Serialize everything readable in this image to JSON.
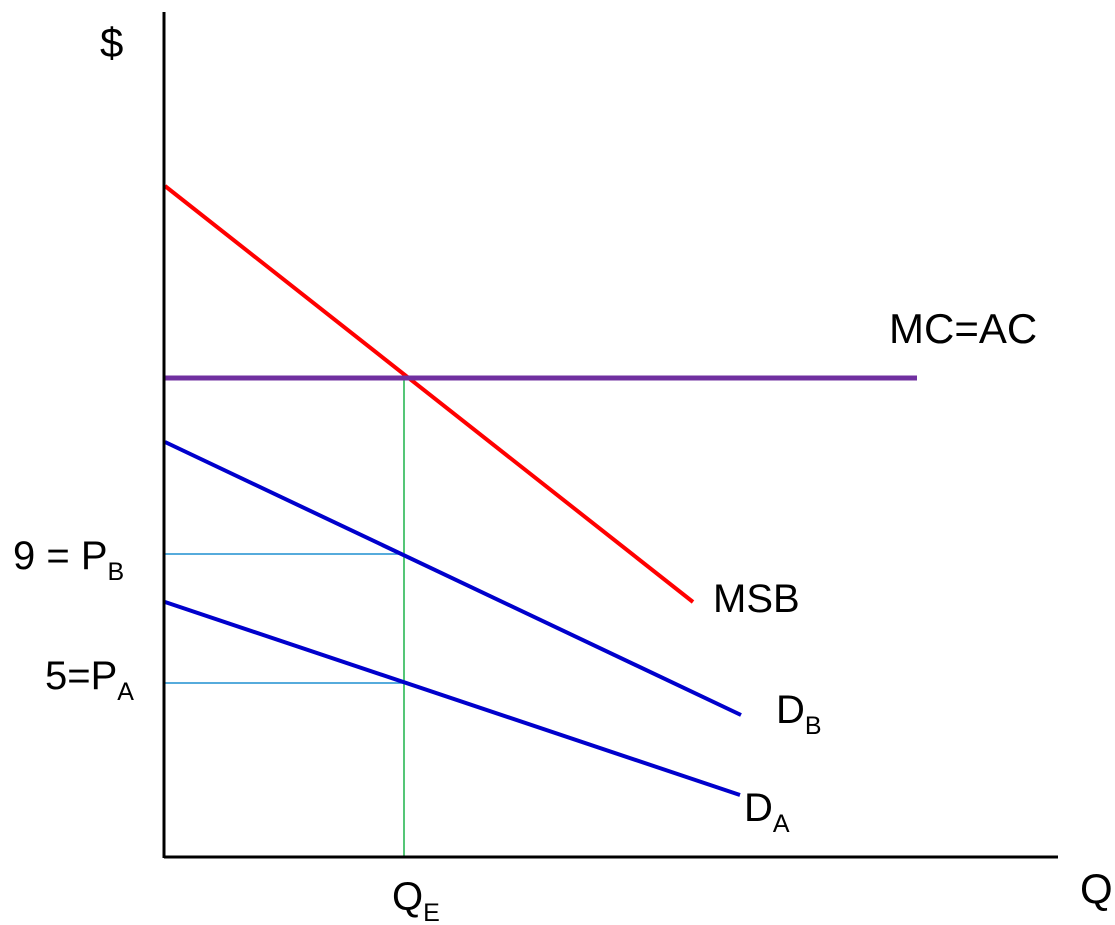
{
  "axes": {
    "y_label": "$",
    "x_label": "Q",
    "axis_color": "#000000"
  },
  "curves": [
    {
      "id": "msb",
      "label": "MSB",
      "color": "#ff0000",
      "role": "downward-sloping"
    },
    {
      "id": "mc",
      "label": "MC=AC",
      "color": "#7030a0",
      "role": "horizontal"
    },
    {
      "id": "db",
      "label_main": "D",
      "label_sub": "B",
      "color": "#0000cc",
      "role": "downward-sloping"
    },
    {
      "id": "da",
      "label_main": "D",
      "label_sub": "A",
      "color": "#0000cc",
      "role": "downward-sloping"
    }
  ],
  "annotations": {
    "p_b": {
      "main": "9 = P",
      "sub": "B",
      "value": 9
    },
    "p_a": {
      "main": "5=P",
      "sub": "A",
      "value": 5
    },
    "q_e": {
      "main": "Q",
      "sub": "E"
    }
  },
  "guide_colors": {
    "horizontal": "#1f8fd0",
    "vertical": "#1db34a"
  }
}
